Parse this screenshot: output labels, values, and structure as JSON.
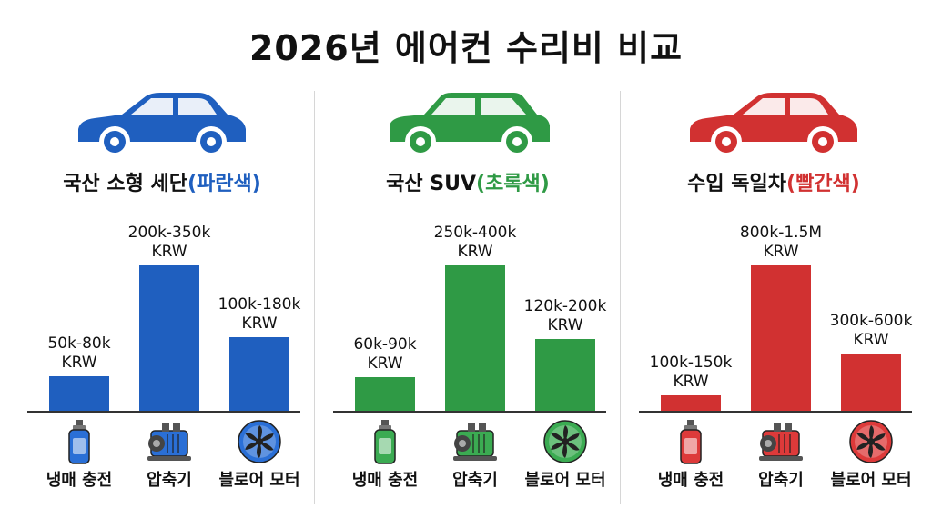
{
  "title": "2026년 에어컨 수리비 비교",
  "chart_data": [
    {
      "type": "bar",
      "title": "국산 소형 세단(파란색)",
      "title_main": "국산 소형 세단",
      "title_paren": "(파란색)",
      "color": "#1f5fbf",
      "icon_fill": "#2a6fd6",
      "categories": [
        "냉매 충전",
        "압축기",
        "블로어 모터"
      ],
      "value_labels": [
        "50k-80k\nKRW",
        "200k-350k\nKRW",
        "100k-180k\nKRW"
      ],
      "values_low": [
        50000,
        200000,
        100000
      ],
      "values_high": [
        80000,
        350000,
        180000
      ],
      "values": [
        65000,
        275000,
        140000
      ],
      "car": "sedan"
    },
    {
      "type": "bar",
      "title": "국산 SUV(초록색)",
      "title_main": "국산 SUV",
      "title_paren": "(초록색)",
      "color": "#2f9a45",
      "icon_fill": "#3bab52",
      "categories": [
        "냉매 충전",
        "압축기",
        "블로어 모터"
      ],
      "value_labels": [
        "60k-90k\nKRW",
        "250k-400k\nKRW",
        "120k-200k\nKRW"
      ],
      "values_low": [
        60000,
        250000,
        120000
      ],
      "values_high": [
        90000,
        400000,
        200000
      ],
      "values": [
        75000,
        325000,
        160000
      ],
      "car": "suv"
    },
    {
      "type": "bar",
      "title": "수입 독일차(빨간색)",
      "title_main": "수입 독일차",
      "title_paren": "(빨간색)",
      "color": "#d13131",
      "icon_fill": "#dd3a3a",
      "categories": [
        "냉매 충전",
        "압축기",
        "블로어 모터"
      ],
      "value_labels": [
        "100k-150k\nKRW",
        "800k-1.5M\nKRW",
        "300k-600k\nKRW"
      ],
      "values_low": [
        100000,
        800000,
        300000
      ],
      "values_high": [
        150000,
        1500000,
        600000
      ],
      "values": [
        125000,
        1150000,
        450000
      ],
      "car": "sedan"
    }
  ]
}
